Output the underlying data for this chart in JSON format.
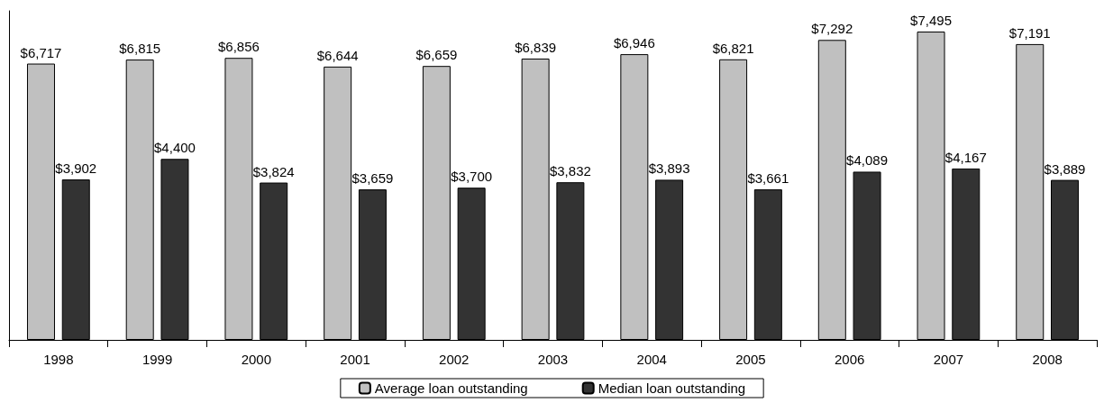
{
  "chart_data": {
    "type": "bar",
    "categories": [
      "1998",
      "1999",
      "2000",
      "2001",
      "2002",
      "2003",
      "2004",
      "2005",
      "2006",
      "2007",
      "2008"
    ],
    "series": [
      {
        "name": "Average loan outstanding",
        "color": "#c0c0c0",
        "values": [
          6717,
          6815,
          6856,
          6644,
          6659,
          6839,
          6946,
          6821,
          7292,
          7495,
          7191
        ],
        "value_labels": [
          "$6,717",
          "$6,815",
          "$6,856",
          "$6,644",
          "$6,659",
          "$6,839",
          "$6,946",
          "$6,821",
          "$7,292",
          "$7,495",
          "$7,191"
        ]
      },
      {
        "name": "Median loan outstanding",
        "color": "#333333",
        "values": [
          3902,
          4400,
          3824,
          3659,
          3700,
          3832,
          3893,
          3661,
          4089,
          4167,
          3889
        ],
        "value_labels": [
          "$3,902",
          "$4,400",
          "$3,824",
          "$3,659",
          "$3,700",
          "$3,832",
          "$3,893",
          "$3,661",
          "$4,089",
          "$4,167",
          "$3,889"
        ]
      }
    ],
    "legend": "bottom",
    "grid": false,
    "tick_labels": "x"
  }
}
